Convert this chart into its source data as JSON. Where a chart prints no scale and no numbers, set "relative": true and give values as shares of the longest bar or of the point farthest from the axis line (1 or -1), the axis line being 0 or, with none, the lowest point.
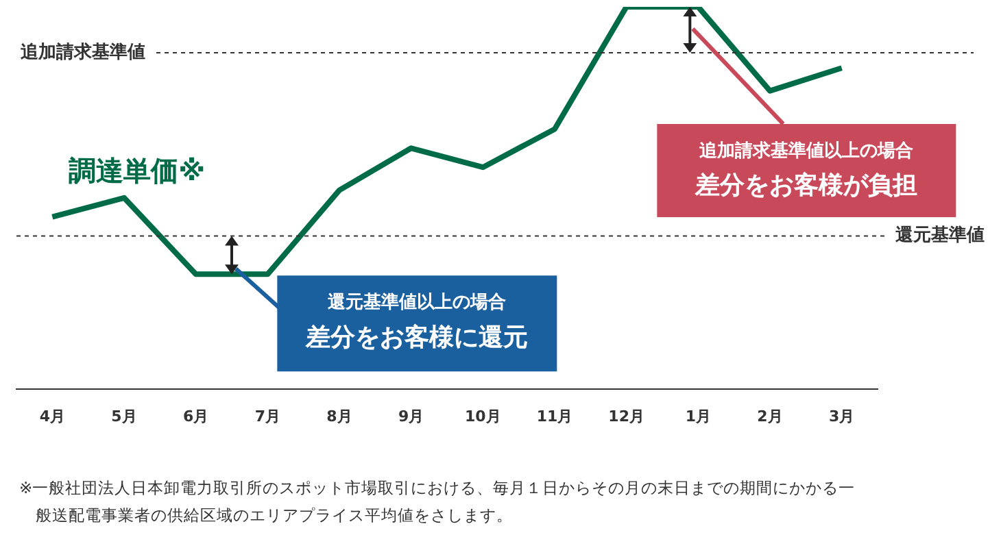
{
  "chart_data": {
    "type": "line",
    "relative": true,
    "categories": [
      "4月",
      "5月",
      "6月",
      "7月",
      "8月",
      "9月",
      "10月",
      "11月",
      "12月",
      "1月",
      "2月",
      "3月"
    ],
    "series": [
      {
        "name": "調達単価※",
        "color": "#006b47",
        "values": [
          0.45,
          0.5,
          0.3,
          0.3,
          0.52,
          0.63,
          0.58,
          0.68,
          1,
          1,
          0.78,
          0.84
        ]
      }
    ],
    "marker": "none",
    "line_style": "solid",
    "ref_lines": [
      {
        "axis": "y",
        "value": 0.88,
        "label": "追加請求基準値",
        "line_style": "dashed",
        "color": "#333333"
      },
      {
        "axis": "y",
        "value": 0.4,
        "label": "還元基準値",
        "line_style": "dashed",
        "color": "#333333"
      }
    ],
    "annotations": [
      "還元基準値以上の場合",
      "差分をお客様に還元",
      "追加請求基準値以上の場合",
      "差分をお客様が負担",
      "※一般社団法人日本卸電力取引所のスポット市場取引における、毎月１日からその月の末日までの期間にかかる一般送配電事業者の供給区域のエリアプライス平均値をさします。"
    ]
  }
}
